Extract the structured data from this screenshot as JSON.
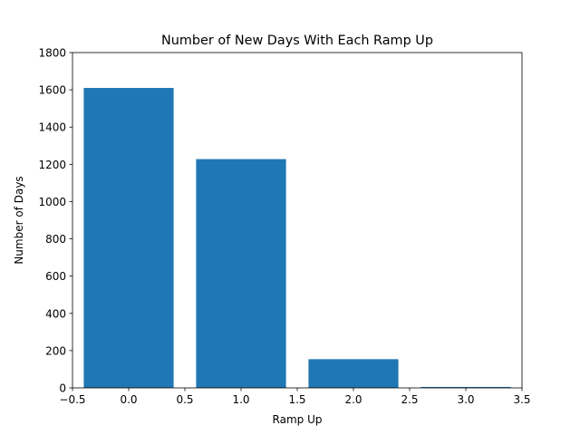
{
  "chart_data": {
    "type": "bar",
    "title": "Number of New Days With Each Ramp Up",
    "xlabel": "Ramp Up",
    "ylabel": "Number of Days",
    "x": [
      0,
      1,
      2,
      3
    ],
    "values": [
      1610,
      1228,
      154,
      5
    ],
    "bar_width": 0.8,
    "xlim": [
      -0.5,
      3.5
    ],
    "ylim": [
      0,
      1800
    ],
    "xticks": [
      -0.5,
      0.0,
      0.5,
      1.0,
      1.5,
      2.0,
      2.5,
      3.0,
      3.5
    ],
    "xtick_labels": [
      "−0.5",
      "0.0",
      "0.5",
      "1.0",
      "1.5",
      "2.0",
      "2.5",
      "3.0",
      "3.5"
    ],
    "yticks": [
      0,
      200,
      400,
      600,
      800,
      1000,
      1200,
      1400,
      1600,
      1800
    ],
    "ytick_labels": [
      "0",
      "200",
      "400",
      "600",
      "800",
      "1000",
      "1200",
      "1400",
      "1600",
      "1800"
    ],
    "grid": false,
    "bar_color": "#1f77b4"
  }
}
